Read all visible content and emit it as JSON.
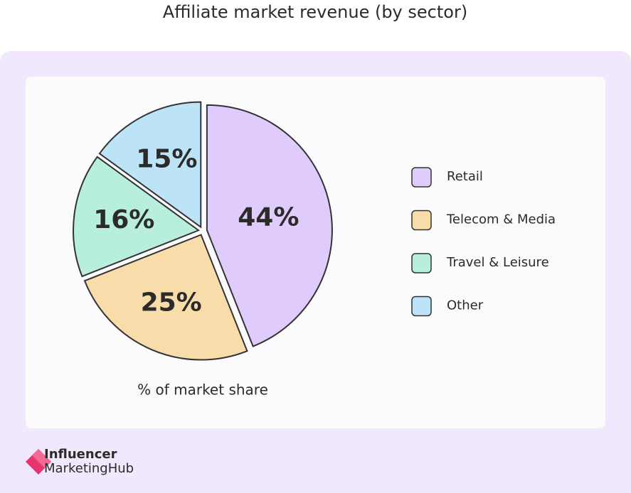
{
  "chart_data": {
    "type": "pie",
    "title": "Affiliate market revenue (by sector)",
    "xlabel": "% of market share",
    "categories": [
      "Retail",
      "Telecom & Media",
      "Travel & Leisure",
      "Other"
    ],
    "values": [
      44,
      25,
      16,
      15
    ],
    "value_labels": [
      "44%",
      "25%",
      "16%",
      "15%"
    ],
    "colors": [
      "#e0ccfc",
      "#f8dcaa",
      "#b8eedd",
      "#bde3f7"
    ],
    "legend": "right"
  },
  "brand": {
    "line1": "Influencer",
    "line2": "MarketingHub"
  }
}
